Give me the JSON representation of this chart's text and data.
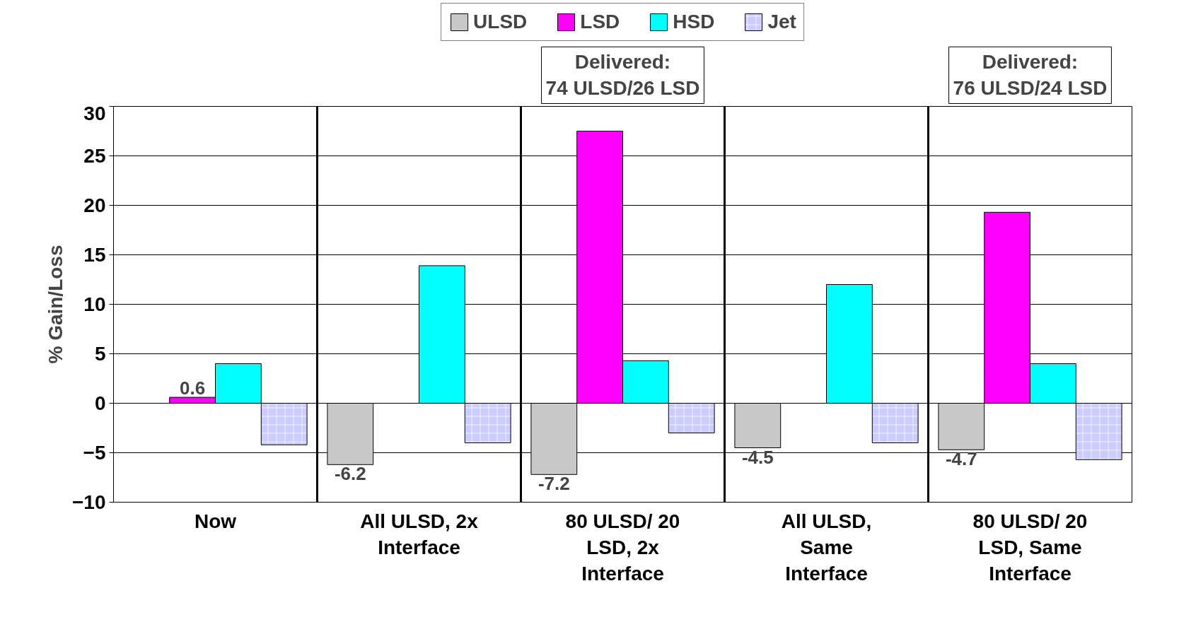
{
  "chart_data": {
    "type": "bar",
    "ylabel": "% Gain/Loss",
    "categories": [
      "Now",
      "All ULSD, 2x\nInterface",
      "80 ULSD/ 20\nLSD, 2x\nInterface",
      "All ULSD,\nSame\nInterface",
      "80 ULSD/ 20\nLSD, Same\nInterface"
    ],
    "series": [
      {
        "name": "ULSD",
        "color": "#c8c8c8",
        "values": [
          null,
          -6.2,
          -7.2,
          -4.5,
          -4.7
        ],
        "value_labels": [
          null,
          "-6.2",
          "-7.2",
          "-4.5",
          "-4.7"
        ]
      },
      {
        "name": "LSD",
        "color": "#ff00ff",
        "values": [
          0.6,
          null,
          27.5,
          null,
          19.3
        ],
        "value_labels": [
          "0.6",
          null,
          null,
          null,
          null
        ]
      },
      {
        "name": "HSD",
        "color": "#00ffff",
        "values": [
          4.0,
          13.9,
          4.3,
          12.0,
          4.0
        ]
      },
      {
        "name": "Jet",
        "color": "#ccccff",
        "values": [
          -4.2,
          -4.0,
          -3.0,
          -4.0,
          -5.7
        ]
      }
    ],
    "ylim": [
      -10,
      30
    ],
    "yticks": [
      -10,
      -5,
      0,
      5,
      10,
      15,
      20,
      25,
      30
    ],
    "grid": "y",
    "legend": "top",
    "annotations": [
      "Delivered:\n74 ULSD/26 LSD",
      "Delivered:\n76 ULSD/24 LSD"
    ]
  }
}
